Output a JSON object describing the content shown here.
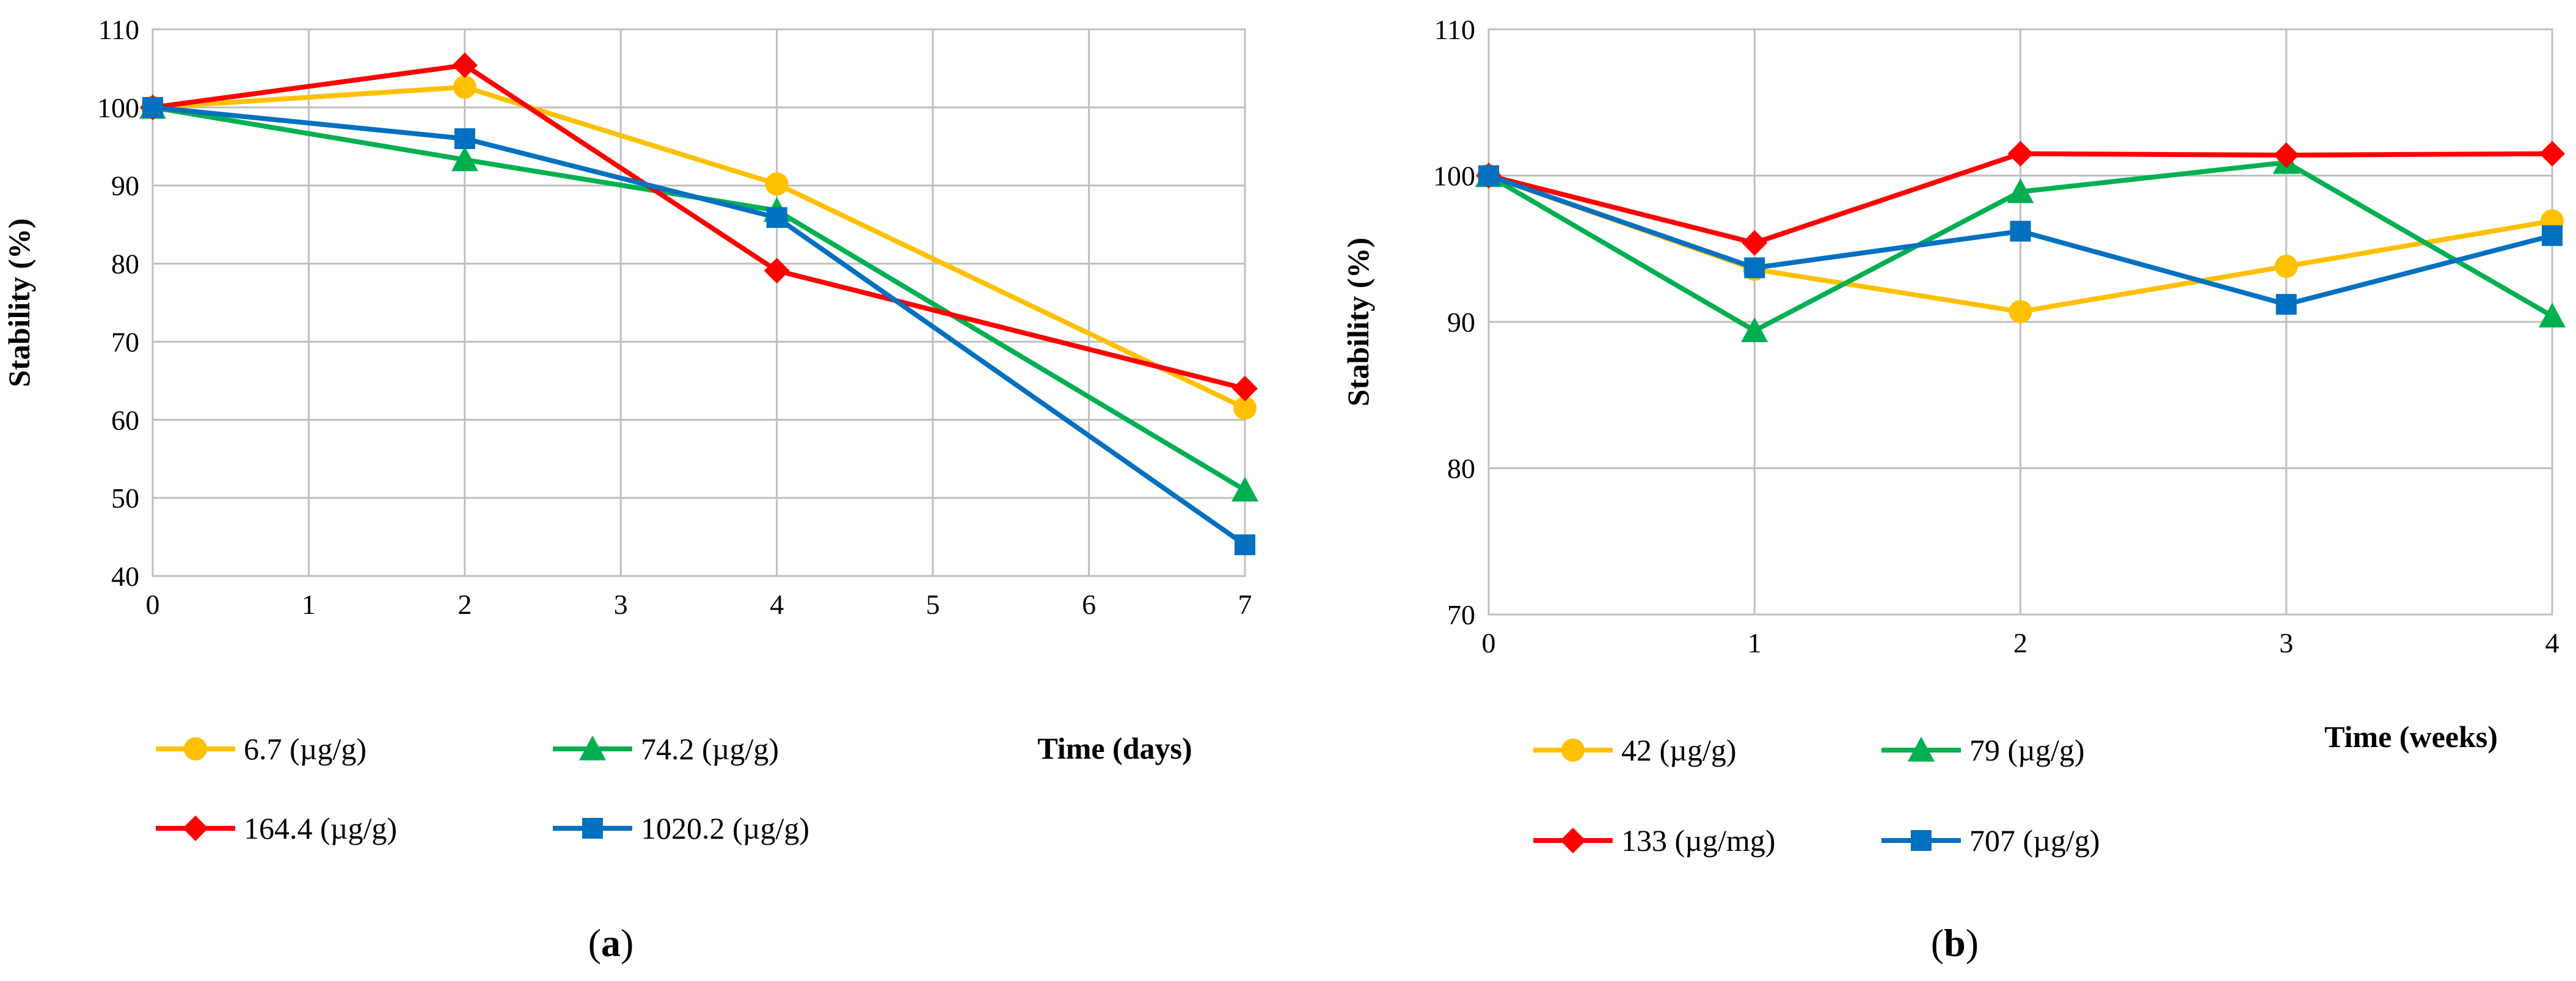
{
  "chart_data": [
    {
      "type": "line",
      "panel": "a",
      "caption_letter": "a",
      "title": "",
      "xlabel": "Time (days)",
      "ylabel": "Stability (%)",
      "xlim": [
        0,
        7
      ],
      "ylim": [
        40,
        110
      ],
      "xticks": [
        0,
        1,
        2,
        3,
        4,
        5,
        6,
        7
      ],
      "yticks": [
        40,
        50,
        60,
        70,
        80,
        90,
        100,
        110
      ],
      "grid": true,
      "series": [
        {
          "name": "6.7 (µg/g)",
          "color": "#FFC000",
          "marker": "circle",
          "x": [
            0,
            2,
            4,
            7
          ],
          "values": [
            100,
            102.6,
            90.2,
            61.5
          ]
        },
        {
          "name": "74.2 (µg/g)",
          "color": "#00B050",
          "marker": "triangle",
          "x": [
            0,
            2,
            4,
            7
          ],
          "values": [
            100,
            93.3,
            86.8,
            51.0
          ]
        },
        {
          "name": "164.4 (µg/g)",
          "color": "#FF0000",
          "marker": "diamond",
          "x": [
            0,
            2,
            4,
            7
          ],
          "values": [
            100,
            105.4,
            79.1,
            64.0
          ]
        },
        {
          "name": "1020.2 (µg/g)",
          "color": "#0070C0",
          "marker": "square",
          "x": [
            0,
            2,
            4,
            7
          ],
          "values": [
            100,
            96.0,
            85.9,
            44.0
          ]
        }
      ],
      "legend_order": [
        0,
        1,
        2,
        3
      ]
    },
    {
      "type": "line",
      "panel": "b",
      "caption_letter": "b",
      "title": "",
      "xlabel": "Time (weeks)",
      "ylabel": "Stability (%)",
      "xlim": [
        0,
        4
      ],
      "ylim": [
        70,
        110
      ],
      "xticks": [
        0,
        1,
        2,
        3,
        4
      ],
      "yticks": [
        70,
        80,
        90,
        100,
        110
      ],
      "grid": true,
      "series": [
        {
          "name": "42 (µg/g)",
          "color": "#FFC000",
          "marker": "circle",
          "x": [
            0,
            1,
            2,
            3,
            4
          ],
          "values": [
            100,
            93.6,
            90.7,
            93.8,
            96.9
          ]
        },
        {
          "name": "79 (µg/g)",
          "color": "#00B050",
          "marker": "triangle",
          "x": [
            0,
            1,
            2,
            3,
            4
          ],
          "values": [
            100,
            89.4,
            98.9,
            100.9,
            90.4
          ]
        },
        {
          "name": "133 (µg/mg)",
          "color": "#FF0000",
          "marker": "diamond",
          "x": [
            0,
            1,
            2,
            3,
            4
          ],
          "values": [
            100,
            95.4,
            101.5,
            101.4,
            101.5
          ]
        },
        {
          "name": "707 (µg/g)",
          "color": "#0070C0",
          "marker": "square",
          "x": [
            0,
            1,
            2,
            3,
            4
          ],
          "values": [
            100,
            93.7,
            96.2,
            91.2,
            95.9
          ]
        }
      ],
      "legend_order": [
        0,
        1,
        2,
        3
      ]
    }
  ]
}
